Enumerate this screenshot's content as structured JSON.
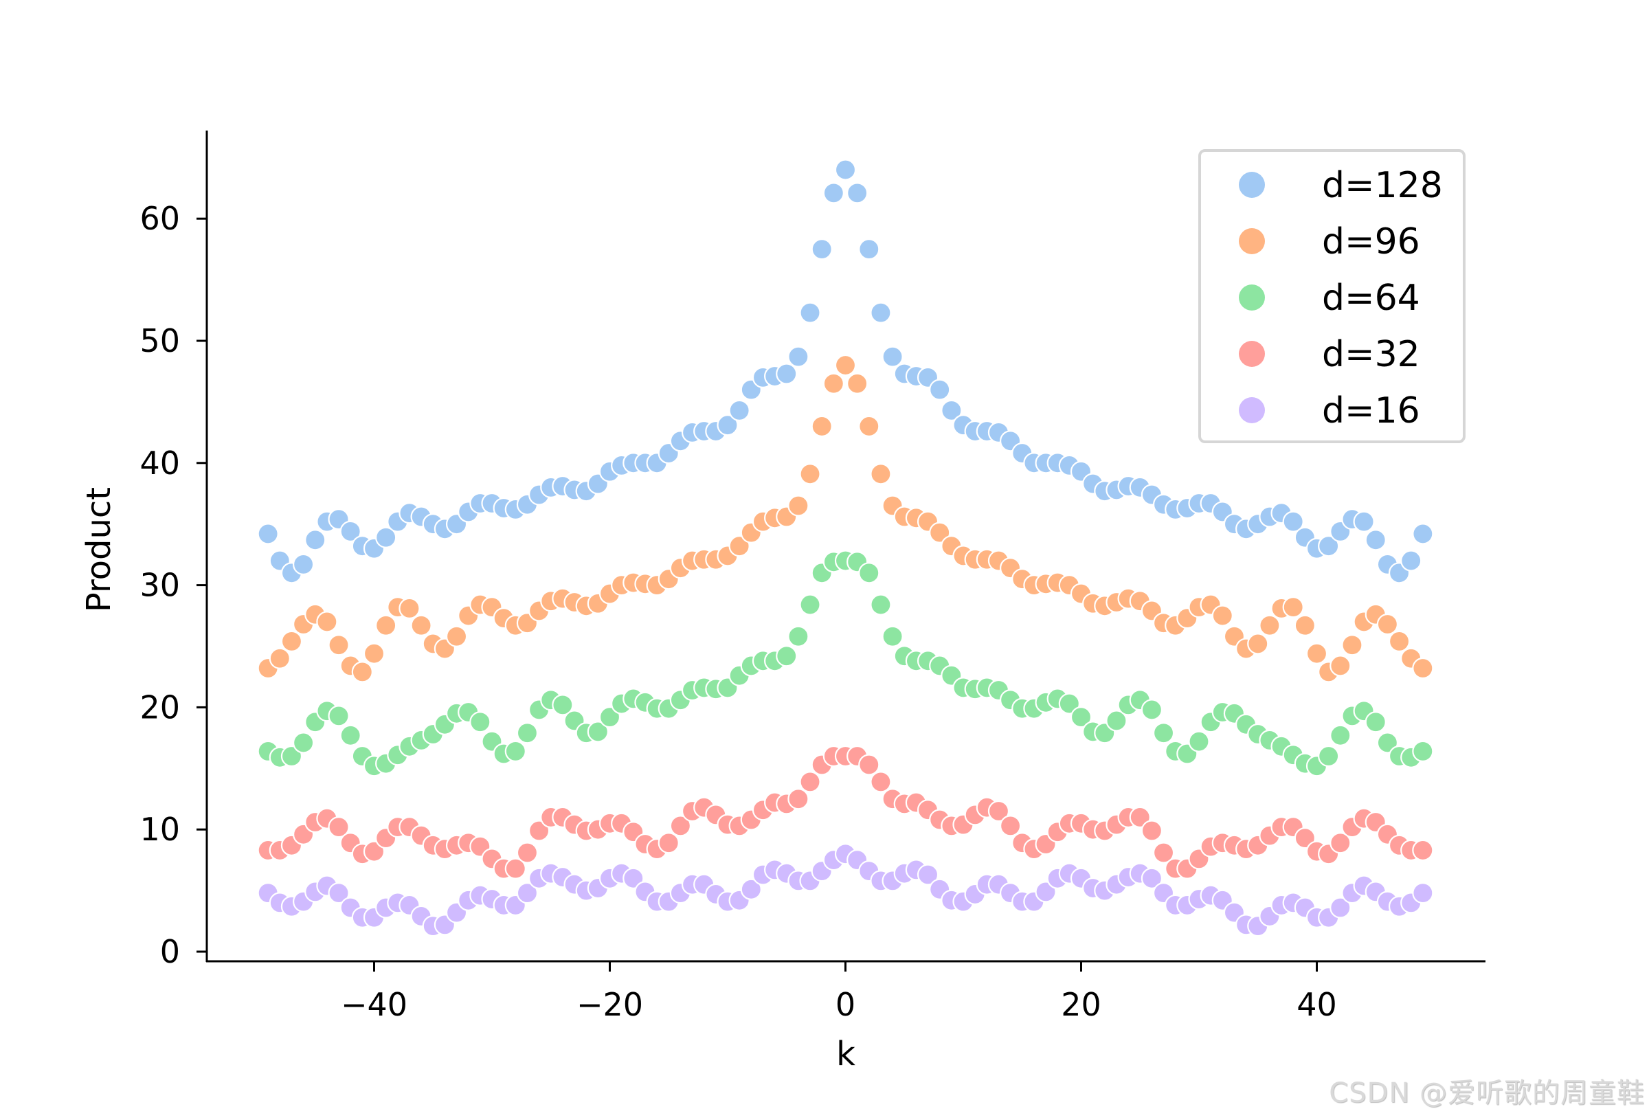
{
  "chart_data": {
    "type": "scatter",
    "title": "",
    "xlabel": "k",
    "ylabel": "Product",
    "xlim": [
      -54.5,
      54.5
    ],
    "ylim": [
      -1,
      67
    ],
    "xticks": [
      -40,
      -20,
      0,
      20,
      40
    ],
    "xtick_labels": [
      "−40",
      "−20",
      "0",
      "20",
      "40"
    ],
    "yticks": [
      0,
      10,
      20,
      30,
      40,
      50,
      60
    ],
    "ytick_labels": [
      "0",
      "10",
      "20",
      "30",
      "40",
      "50",
      "60"
    ],
    "grid": false,
    "legend_position": "upper right",
    "symmetric_about_zero": true,
    "x_half": [
      -49,
      -48,
      -47,
      -46,
      -45,
      -44,
      -43,
      -42,
      -41,
      -40,
      -39,
      -38,
      -37,
      -36,
      -35,
      -34,
      -33,
      -32,
      -31,
      -30,
      -29,
      -28,
      -27,
      -26,
      -25,
      -24,
      -23,
      -22,
      -21,
      -20,
      -19,
      -18,
      -17,
      -16,
      -15,
      -14,
      -13,
      -12,
      -11,
      -10,
      -9,
      -8,
      -7,
      -6,
      -5,
      -4,
      -3,
      -2,
      -1,
      0
    ],
    "series": [
      {
        "name": "d=128",
        "color": "#a1c9f4",
        "values_half": [
          34.2,
          32.0,
          31.0,
          31.7,
          33.7,
          35.2,
          35.4,
          34.4,
          33.2,
          33.0,
          33.9,
          35.2,
          35.9,
          35.6,
          35.0,
          34.6,
          35.0,
          36.0,
          36.7,
          36.7,
          36.3,
          36.2,
          36.6,
          37.4,
          38.0,
          38.1,
          37.8,
          37.7,
          38.3,
          39.3,
          39.8,
          40.0,
          40.0,
          40.0,
          40.8,
          41.8,
          42.5,
          42.6,
          42.6,
          43.1,
          44.3,
          46.0,
          47.0,
          47.1,
          47.3,
          48.7,
          52.3,
          57.5,
          62.1,
          64.0
        ]
      },
      {
        "name": "d=96",
        "color": "#ffb482",
        "values_half": [
          23.2,
          24.0,
          25.4,
          26.8,
          27.6,
          27.0,
          25.1,
          23.4,
          22.9,
          24.4,
          26.7,
          28.2,
          28.1,
          26.7,
          25.2,
          24.8,
          25.8,
          27.5,
          28.4,
          28.2,
          27.3,
          26.7,
          26.9,
          27.9,
          28.7,
          28.9,
          28.6,
          28.3,
          28.5,
          29.3,
          30.0,
          30.2,
          30.1,
          30.0,
          30.5,
          31.4,
          32.0,
          32.1,
          32.1,
          32.4,
          33.2,
          34.3,
          35.2,
          35.5,
          35.6,
          36.5,
          39.1,
          43.0,
          46.5,
          48.0
        ]
      },
      {
        "name": "d=64",
        "color": "#8de5a1",
        "values_half": [
          16.4,
          15.9,
          16.0,
          17.1,
          18.8,
          19.7,
          19.3,
          17.7,
          16.0,
          15.2,
          15.4,
          16.1,
          16.8,
          17.3,
          17.8,
          18.6,
          19.5,
          19.6,
          18.8,
          17.2,
          16.2,
          16.4,
          17.9,
          19.8,
          20.6,
          20.2,
          18.9,
          17.9,
          18.0,
          19.2,
          20.3,
          20.7,
          20.4,
          19.9,
          19.9,
          20.6,
          21.4,
          21.6,
          21.5,
          21.6,
          22.6,
          23.4,
          23.8,
          23.8,
          24.2,
          25.8,
          28.4,
          31.0,
          31.9,
          32.0
        ]
      },
      {
        "name": "d=32",
        "color": "#ff9f9b",
        "values_half": [
          8.3,
          8.3,
          8.7,
          9.6,
          10.6,
          10.9,
          10.2,
          8.9,
          8.0,
          8.2,
          9.3,
          10.2,
          10.2,
          9.5,
          8.7,
          8.4,
          8.7,
          8.9,
          8.6,
          7.6,
          6.8,
          6.8,
          8.1,
          9.9,
          11.0,
          11.0,
          10.4,
          9.9,
          10.0,
          10.5,
          10.5,
          9.8,
          8.8,
          8.4,
          8.9,
          10.3,
          11.5,
          11.8,
          11.2,
          10.4,
          10.3,
          10.8,
          11.6,
          12.2,
          12.1,
          12.5,
          13.9,
          15.3,
          16.0,
          16.0
        ]
      },
      {
        "name": "d=16",
        "color": "#d0bbff",
        "values_half": [
          4.8,
          4.0,
          3.7,
          4.1,
          4.9,
          5.4,
          4.8,
          3.6,
          2.8,
          2.8,
          3.6,
          4.0,
          3.8,
          2.9,
          2.1,
          2.2,
          3.2,
          4.2,
          4.6,
          4.3,
          3.8,
          3.8,
          4.8,
          6.0,
          6.4,
          6.1,
          5.5,
          5.0,
          5.2,
          6.0,
          6.4,
          6.0,
          4.9,
          4.1,
          4.1,
          4.8,
          5.5,
          5.5,
          4.7,
          4.1,
          4.2,
          5.1,
          6.3,
          6.7,
          6.4,
          5.8,
          5.8,
          6.6,
          7.5,
          8.0
        ]
      }
    ]
  },
  "legend": {
    "items": [
      {
        "label": "d=128",
        "color": "#a1c9f4"
      },
      {
        "label": "d=96",
        "color": "#ffb482"
      },
      {
        "label": "d=64",
        "color": "#8de5a1"
      },
      {
        "label": "d=32",
        "color": "#ff9f9b"
      },
      {
        "label": "d=16",
        "color": "#d0bbff"
      }
    ]
  },
  "watermark": "CSDN @爱听歌的周童鞋"
}
